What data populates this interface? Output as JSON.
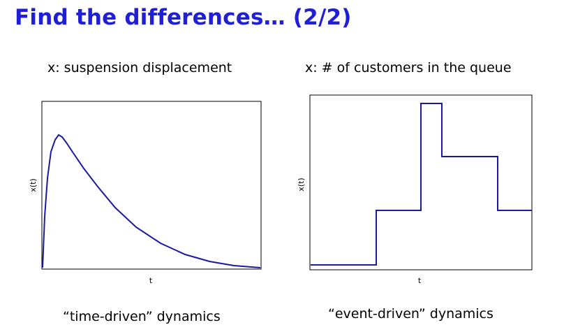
{
  "title": "Find the differences… (2/2)",
  "left_panel": {
    "heading": "x: suspension displacement",
    "caption": "“time-driven” dynamics",
    "xlabel": "t",
    "ylabel": "x(t)"
  },
  "right_panel": {
    "heading": "x: # of customers in the queue",
    "caption": "“event-driven” dynamics",
    "xlabel": "t",
    "ylabel": "x(t)"
  },
  "colors": {
    "title": "#1f1fd6",
    "curve": "#1a1aa0"
  }
}
